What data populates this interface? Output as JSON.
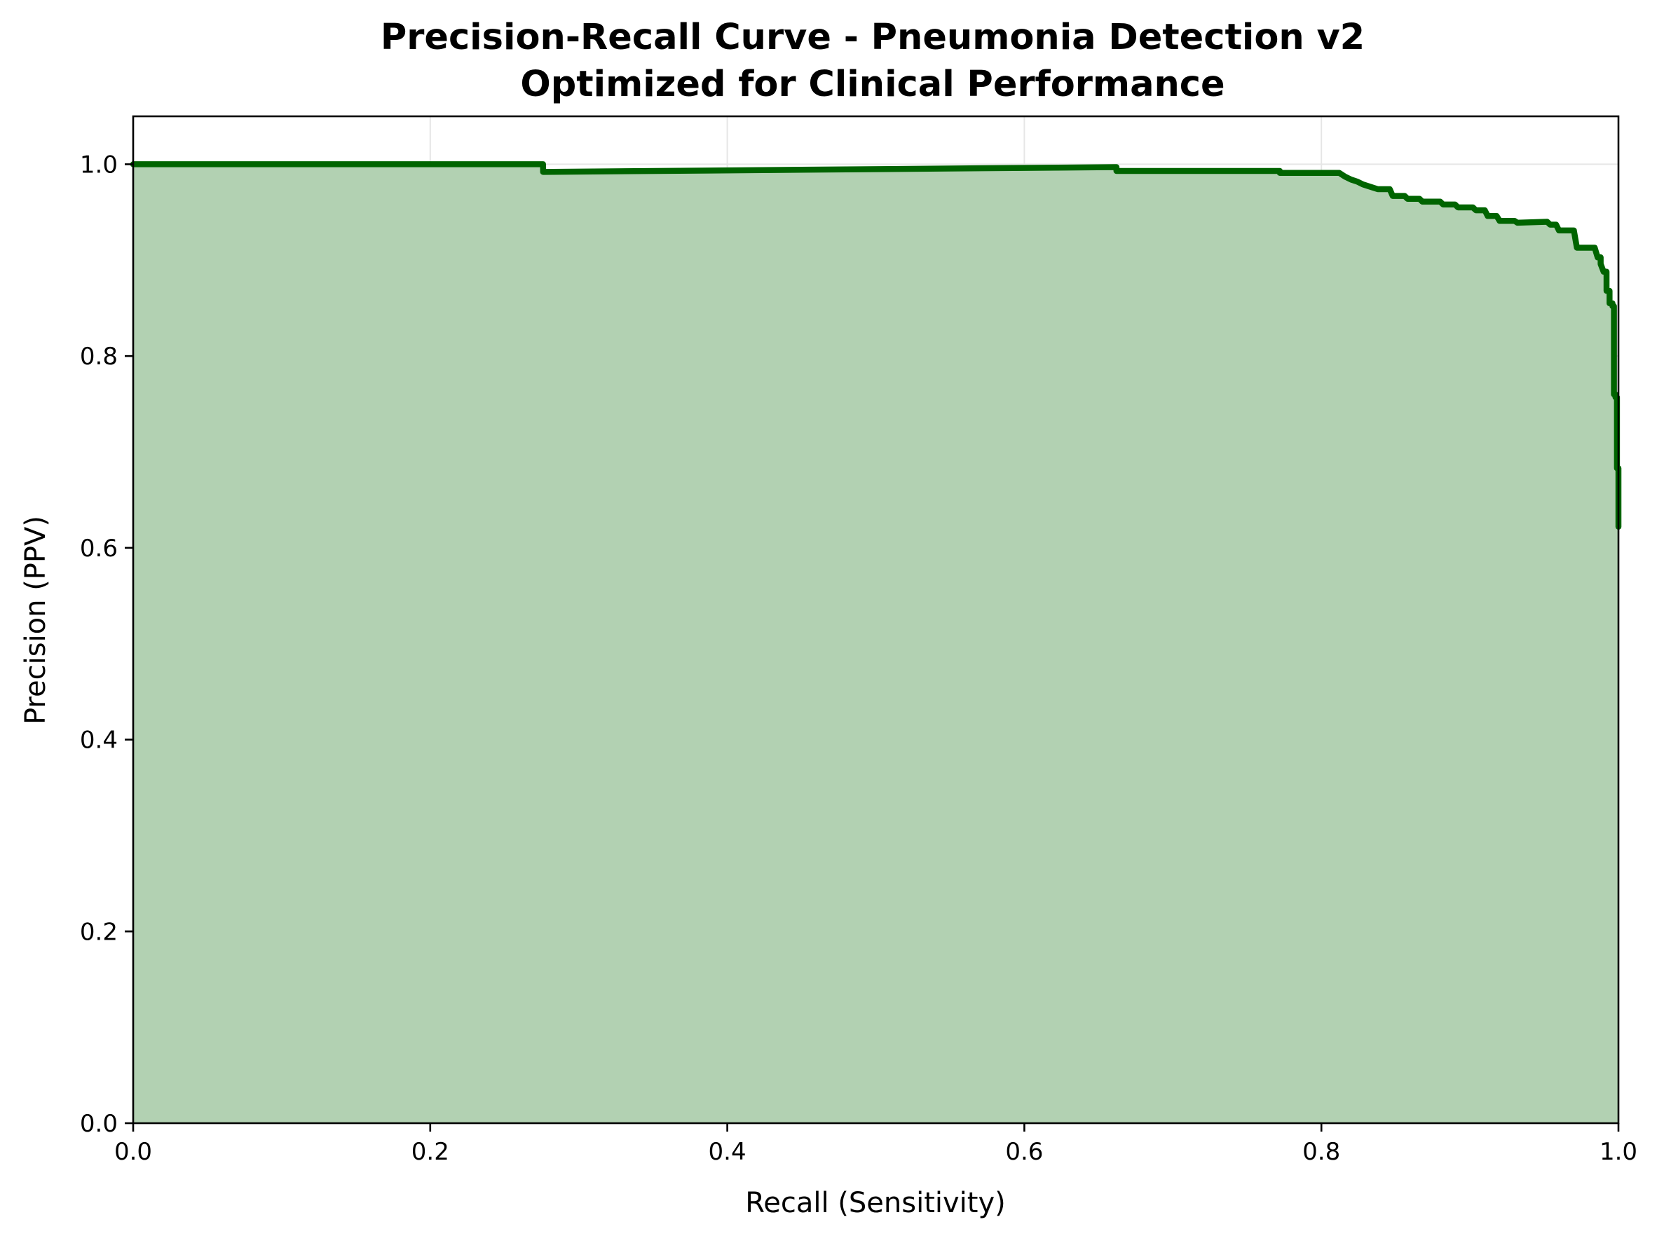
{
  "chart_data": {
    "type": "area",
    "title": "Precision-Recall Curve - Pneumonia Detection v2",
    "subtitle": "Optimized for Clinical Performance",
    "xlabel": "Recall (Sensitivity)",
    "ylabel": "Precision (PPV)",
    "xlim": [
      0.0,
      1.0
    ],
    "ylim": [
      0.0,
      1.05
    ],
    "xticks": [
      "0.0",
      "0.2",
      "0.4",
      "0.6",
      "0.8",
      "1.0"
    ],
    "yticks": [
      "0.0",
      "0.2",
      "0.4",
      "0.6",
      "0.8",
      "1.0"
    ],
    "grid": true,
    "line_color": "#006400",
    "fill_color": "#b2d1b2",
    "series": [
      {
        "x": [
          0.0,
          0.276,
          0.276,
          0.662,
          0.662,
          0.772,
          0.772,
          0.812,
          0.816,
          0.82,
          0.824,
          0.828,
          0.832,
          0.838,
          0.842,
          0.846,
          0.848,
          0.856,
          0.858,
          0.866,
          0.868,
          0.88,
          0.882,
          0.89,
          0.892,
          0.902,
          0.904,
          0.91,
          0.912,
          0.918,
          0.92,
          0.93,
          0.932,
          0.952,
          0.954,
          0.958,
          0.96,
          0.97,
          0.972,
          0.984,
          0.986,
          0.988,
          0.988,
          0.99,
          0.992,
          0.992,
          0.994,
          0.994,
          0.996,
          0.996,
          0.997,
          0.997,
          0.998,
          0.998,
          0.999,
          0.999,
          1.0,
          1.0
        ],
        "y": [
          1.0,
          1.0,
          0.992,
          0.997,
          0.993,
          0.993,
          0.991,
          0.991,
          0.987,
          0.984,
          0.982,
          0.979,
          0.977,
          0.974,
          0.974,
          0.974,
          0.967,
          0.967,
          0.964,
          0.964,
          0.961,
          0.961,
          0.958,
          0.958,
          0.955,
          0.955,
          0.952,
          0.952,
          0.946,
          0.946,
          0.941,
          0.941,
          0.939,
          0.94,
          0.937,
          0.937,
          0.931,
          0.931,
          0.913,
          0.913,
          0.903,
          0.903,
          0.896,
          0.888,
          0.888,
          0.868,
          0.868,
          0.855,
          0.855,
          0.852,
          0.852,
          0.76,
          0.76,
          0.757,
          0.757,
          0.683,
          0.683,
          0.622
        ]
      }
    ]
  }
}
